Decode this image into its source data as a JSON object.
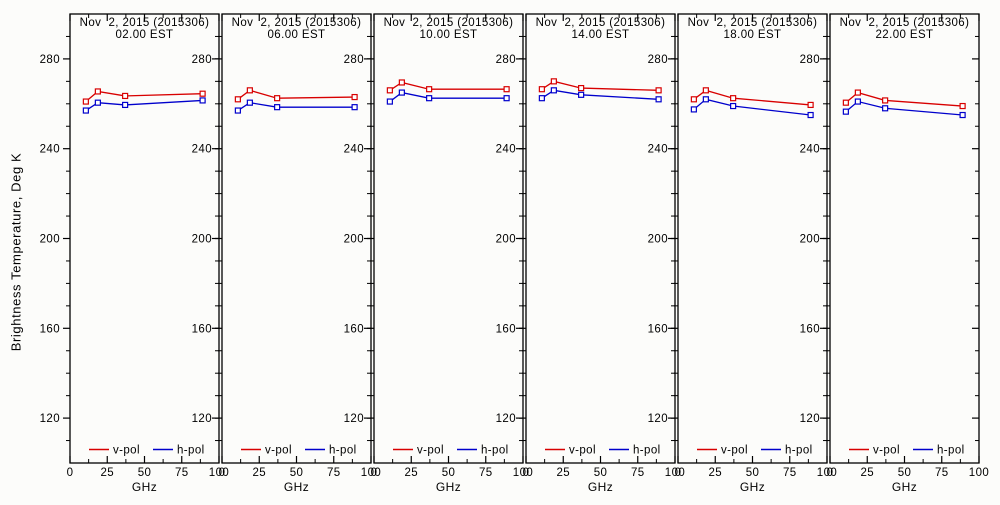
{
  "chart_data": {
    "type": "line",
    "title": "Nov  2, 2015 (2015306)",
    "xlabel": "GHz",
    "ylabel": "Brightness Temperature, Deg K",
    "x": [
      10.65,
      18.7,
      37.0,
      89.0
    ],
    "xlim": [
      0,
      100
    ],
    "ylim": [
      100,
      300
    ],
    "xticks": [
      0,
      25,
      50,
      75,
      100
    ],
    "yticks": [
      120,
      160,
      200,
      240,
      280
    ],
    "x_minor_ticks": [
      12.5,
      37.5,
      62.5,
      87.5
    ],
    "y_minor_step": 10,
    "grid": false,
    "legend_position": "bottom-inside-each-panel",
    "legend": [
      {
        "label": "v-pol",
        "color": "#d80000"
      },
      {
        "label": "h-pol",
        "color": "#0000cc"
      }
    ],
    "panels": [
      {
        "title_line1": "Nov  2, 2015 (2015306)",
        "title_line2": "02.00 EST",
        "series": [
          {
            "name": "v-pol",
            "values": [
              261.0,
              265.5,
              263.5,
              264.5
            ]
          },
          {
            "name": "h-pol",
            "values": [
              257.0,
              260.5,
              259.5,
              261.5
            ]
          }
        ]
      },
      {
        "title_line1": "Nov  2, 2015 (2015306)",
        "title_line2": "06.00 EST",
        "series": [
          {
            "name": "v-pol",
            "values": [
              262.0,
              266.0,
              262.5,
              263.0
            ]
          },
          {
            "name": "h-pol",
            "values": [
              257.0,
              260.5,
              258.5,
              258.5
            ]
          }
        ]
      },
      {
        "title_line1": "Nov  2, 2015 (2015306)",
        "title_line2": "10.00 EST",
        "series": [
          {
            "name": "v-pol",
            "values": [
              266.0,
              269.5,
              266.5,
              266.5
            ]
          },
          {
            "name": "h-pol",
            "values": [
              261.0,
              265.0,
              262.5,
              262.5
            ]
          }
        ]
      },
      {
        "title_line1": "Nov  2, 2015 (2015306)",
        "title_line2": "14.00 EST",
        "series": [
          {
            "name": "v-pol",
            "values": [
              266.5,
              270.0,
              267.0,
              266.0
            ]
          },
          {
            "name": "h-pol",
            "values": [
              262.5,
              266.0,
              264.0,
              262.0
            ]
          }
        ]
      },
      {
        "title_line1": "Nov  2, 2015 (2015306)",
        "title_line2": "18.00 EST",
        "series": [
          {
            "name": "v-pol",
            "values": [
              262.0,
              266.0,
              262.5,
              259.5
            ]
          },
          {
            "name": "h-pol",
            "values": [
              257.5,
              262.0,
              259.0,
              255.0
            ]
          }
        ]
      },
      {
        "title_line1": "Nov  2, 2015 (2015306)",
        "title_line2": "22.00 EST",
        "series": [
          {
            "name": "v-pol",
            "values": [
              260.5,
              265.0,
              261.5,
              259.0
            ]
          },
          {
            "name": "h-pol",
            "values": [
              256.5,
              261.0,
              258.0,
              255.0
            ]
          }
        ]
      }
    ],
    "colors": {
      "v-pol": "#d80000",
      "h-pol": "#0000cc",
      "axis": "#000000",
      "background": "#fcfcfa"
    }
  }
}
